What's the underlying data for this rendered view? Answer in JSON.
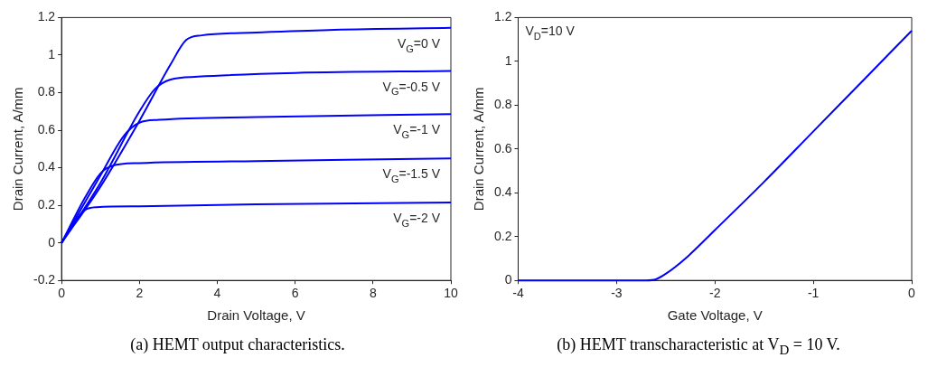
{
  "chart_data": [
    {
      "type": "line",
      "title": "(a) HEMT output characteristics.",
      "xlabel": "Drain Voltage, V",
      "ylabel": "Drain Current, A/mm",
      "xlim": [
        0,
        10
      ],
      "ylim": [
        -0.2,
        1.2
      ],
      "xticks": [
        0,
        2,
        4,
        6,
        8,
        10
      ],
      "yticks": [
        -0.2,
        0,
        0.2,
        0.4,
        0.6,
        0.8,
        1,
        1.2
      ],
      "grid": false,
      "series": [
        {
          "name": "V$_{G}$=0 V",
          "color": "#0000ff",
          "x": [
            0,
            1,
            2,
            2.8,
            3.2,
            3.6,
            5,
            7,
            10
          ],
          "values": [
            0,
            0.3,
            0.65,
            0.95,
            1.08,
            1.105,
            1.12,
            1.135,
            1.145
          ]
        },
        {
          "name": "V$_{G}$=-0.5 V",
          "color": "#0000ff",
          "x": [
            0,
            1,
            2,
            2.4,
            2.8,
            3.5,
            6,
            10
          ],
          "values": [
            0,
            0.32,
            0.7,
            0.82,
            0.87,
            0.885,
            0.905,
            0.915
          ]
        },
        {
          "name": "V$_{G}$=-1 V",
          "color": "#0000ff",
          "x": [
            0,
            1,
            1.6,
            2,
            2.5,
            5,
            10
          ],
          "values": [
            0,
            0.36,
            0.57,
            0.64,
            0.655,
            0.67,
            0.685
          ]
        },
        {
          "name": "V$_{G}$=-1.5 V",
          "color": "#0000ff",
          "x": [
            0,
            0.6,
            1,
            1.3,
            2,
            5,
            10
          ],
          "values": [
            0,
            0.24,
            0.37,
            0.41,
            0.425,
            0.435,
            0.45
          ]
        },
        {
          "name": "V$_{G}$=-2 V",
          "color": "#0000ff",
          "x": [
            0,
            0.4,
            0.6,
            0.9,
            2,
            5,
            10
          ],
          "values": [
            0,
            0.13,
            0.175,
            0.19,
            0.195,
            0.205,
            0.215
          ]
        }
      ]
    },
    {
      "type": "line",
      "title": "(b) HEMT transcharacteristic at V$_{D}$ = 10 V.",
      "xlabel": "Gate Voltage, V",
      "ylabel": "Drain Current, A/mm",
      "xlim": [
        -4,
        0
      ],
      "ylim": [
        0,
        1.2
      ],
      "xticks": [
        -4,
        -3,
        -2,
        -1,
        0
      ],
      "yticks": [
        0,
        0.2,
        0.4,
        0.6,
        0.8,
        1,
        1.2
      ],
      "grid": false,
      "annotations": [
        "V$_{D}$=10 V"
      ],
      "series": [
        {
          "color": "#0000ff",
          "x": [
            -4,
            -3,
            -2.7,
            -2.6,
            -2.5,
            -2.3,
            -2,
            -1.5,
            -1,
            -0.5,
            0
          ],
          "values": [
            0,
            0,
            0,
            0.005,
            0.03,
            0.1,
            0.23,
            0.45,
            0.68,
            0.91,
            1.14
          ]
        }
      ]
    }
  ]
}
